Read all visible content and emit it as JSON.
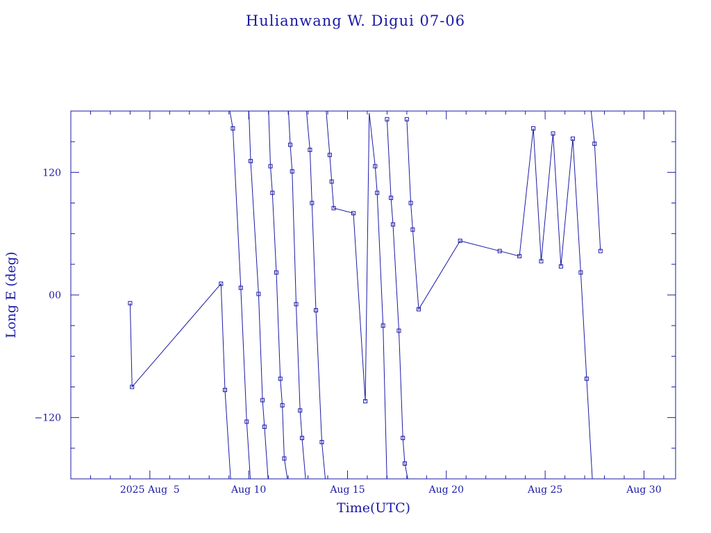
{
  "colors": {
    "ink": "#1a1aa6",
    "background": "#ffffff"
  },
  "chart_data": {
    "type": "line",
    "title": "Hulianwang W. Digui 07-06",
    "xlabel": "Time(UTC)",
    "ylabel": "Long E (deg)",
    "xlim": [
      1.0,
      31.6
    ],
    "ylim": [
      -180,
      180
    ],
    "x_unit": "day of August 2025 (UTC)",
    "x_ticks": [
      {
        "x": 5,
        "label": "2025 Aug  5"
      },
      {
        "x": 10,
        "label": "Aug 10"
      },
      {
        "x": 15,
        "label": "Aug 15"
      },
      {
        "x": 20,
        "label": "Aug 20"
      },
      {
        "x": 25,
        "label": "Aug 25"
      },
      {
        "x": 30,
        "label": "Aug 30"
      }
    ],
    "y_ticks": [
      {
        "y": 120,
        "label": "120"
      },
      {
        "y": 0,
        "label": "00"
      },
      {
        "y": -120,
        "label": "−120"
      }
    ],
    "grid": false,
    "marker": "square",
    "series": [
      {
        "points": [
          [
            4.0,
            -8
          ],
          [
            4.1,
            -90
          ],
          [
            8.6,
            11
          ],
          [
            8.8,
            -93
          ],
          [
            9.1,
            -185
          ]
        ]
      },
      {
        "points": [
          [
            9.0,
            185
          ],
          [
            9.2,
            163
          ],
          [
            9.6,
            7
          ],
          [
            9.9,
            -124
          ],
          [
            10.1,
            -185
          ]
        ]
      },
      {
        "points": [
          [
            10.0,
            185
          ],
          [
            10.1,
            131
          ],
          [
            10.5,
            1
          ],
          [
            10.7,
            -103
          ],
          [
            10.8,
            -129
          ],
          [
            11.0,
            -185
          ]
        ]
      },
      {
        "points": [
          [
            11.0,
            185
          ],
          [
            11.1,
            126
          ],
          [
            11.2,
            100
          ],
          [
            11.4,
            22
          ],
          [
            11.6,
            -82
          ],
          [
            11.7,
            -108
          ],
          [
            11.8,
            -160
          ],
          [
            12.0,
            -185
          ]
        ]
      },
      {
        "points": [
          [
            12.0,
            185
          ],
          [
            12.1,
            147
          ],
          [
            12.2,
            121
          ],
          [
            12.4,
            -9
          ],
          [
            12.6,
            -113
          ],
          [
            12.7,
            -140
          ],
          [
            12.9,
            -185
          ]
        ]
      },
      {
        "points": [
          [
            12.9,
            185
          ],
          [
            13.1,
            142
          ],
          [
            13.2,
            90
          ],
          [
            13.4,
            -15
          ],
          [
            13.7,
            -144
          ],
          [
            13.9,
            -185
          ]
        ]
      },
      {
        "points": [
          [
            13.9,
            185
          ],
          [
            14.1,
            137
          ],
          [
            14.2,
            111
          ],
          [
            14.3,
            85
          ],
          [
            15.3,
            80
          ],
          [
            15.9,
            -104
          ],
          [
            16.1,
            178
          ],
          [
            16.4,
            126
          ],
          [
            16.5,
            100
          ],
          [
            16.8,
            -30
          ],
          [
            17.0,
            -185
          ]
        ]
      },
      {
        "points": [
          [
            17.0,
            172
          ],
          [
            17.2,
            95
          ],
          [
            17.3,
            69
          ],
          [
            17.6,
            -35
          ],
          [
            17.8,
            -140
          ],
          [
            17.9,
            -165
          ],
          [
            18.1,
            -185
          ]
        ]
      },
      {
        "points": [
          [
            18.0,
            172
          ],
          [
            18.2,
            90
          ],
          [
            18.3,
            64
          ],
          [
            18.6,
            -14
          ],
          [
            20.7,
            53
          ],
          [
            22.7,
            43
          ],
          [
            23.7,
            38
          ],
          [
            24.4,
            163
          ],
          [
            24.8,
            33
          ],
          [
            25.4,
            158
          ],
          [
            25.8,
            28
          ],
          [
            26.4,
            153
          ],
          [
            26.8,
            22
          ],
          [
            27.1,
            -82
          ],
          [
            27.4,
            -185
          ]
        ]
      },
      {
        "points": [
          [
            27.3,
            185
          ],
          [
            27.5,
            148
          ],
          [
            27.8,
            43
          ]
        ]
      }
    ]
  }
}
